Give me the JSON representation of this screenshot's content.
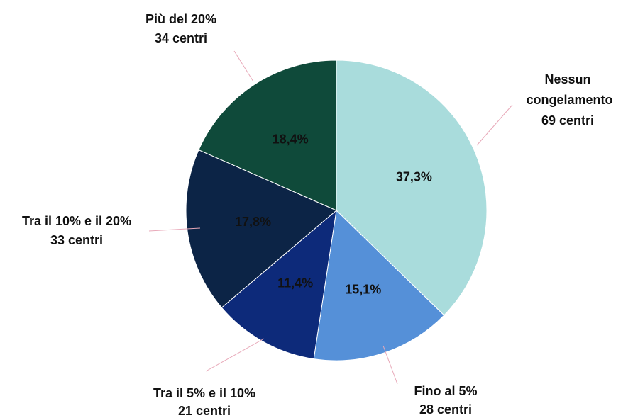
{
  "chart_data": {
    "type": "pie",
    "categories": [
      "Nessun congelamento",
      "Fino al 5%",
      "Tra il 5% e il 10%",
      "Tra il 10% e il 20%",
      "Più del 20%"
    ],
    "sublabels": [
      "69 centri",
      "28 centri",
      "21 centri",
      "33 centri",
      "34 centri"
    ],
    "values": [
      37.3,
      15.1,
      11.4,
      17.8,
      18.4
    ],
    "value_labels": [
      "37,3%",
      "15,1%",
      "11,4%",
      "17,8%",
      "18,4%"
    ],
    "colors": [
      "#a9dcdc",
      "#5590d8",
      "#0d2a7a",
      "#0c2446",
      "#0f4a3a"
    ]
  }
}
